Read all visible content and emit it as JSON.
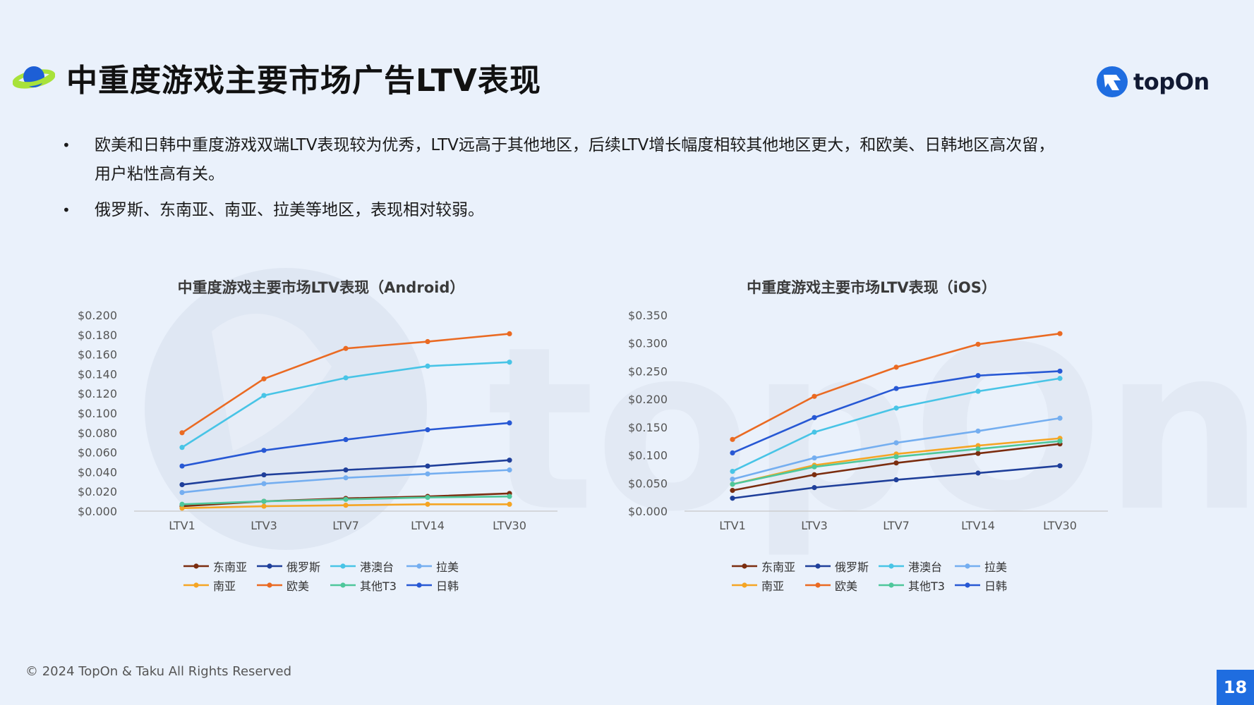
{
  "page": {
    "title": "中重度游戏主要市场广告LTV表现",
    "logo_text": "topOn",
    "bullets": [
      "欧美和日韩中重度游戏双端LTV表现较为优秀，LTV远高于其他地区，后续LTV增长幅度相较其他地区更大，和欧美、日韩地区高次留，用户粘性高有关。",
      "俄罗斯、东南亚、南亚、拉美等地区，表现相对较弱。"
    ],
    "bullet_marker": "•",
    "footer": "© 2024 TopOn & Taku All Rights Reserved",
    "page_number": "18"
  },
  "chart_data": [
    {
      "type": "line",
      "title": "中重度游戏主要市场LTV表现（Android）",
      "categories": [
        "LTV1",
        "LTV3",
        "LTV7",
        "LTV14",
        "LTV30"
      ],
      "ylim": [
        0,
        0.2
      ],
      "yticks": [
        "$0.000",
        "$0.020",
        "$0.040",
        "$0.060",
        "$0.080",
        "$0.100",
        "$0.120",
        "$0.140",
        "$0.160",
        "$0.180",
        "$0.200"
      ],
      "grid": false,
      "legend": "bottom",
      "series": [
        {
          "name": "东南亚",
          "color": "#7b2d0f",
          "values": [
            0.005,
            0.01,
            0.013,
            0.015,
            0.018
          ]
        },
        {
          "name": "俄罗斯",
          "color": "#1f3f9a",
          "values": [
            0.027,
            0.037,
            0.042,
            0.046,
            0.052
          ]
        },
        {
          "name": "港澳台",
          "color": "#48c4e6",
          "values": [
            0.065,
            0.118,
            0.136,
            0.148,
            0.152
          ]
        },
        {
          "name": "拉美",
          "color": "#74aef0",
          "values": [
            0.019,
            0.028,
            0.034,
            0.038,
            0.042
          ]
        },
        {
          "name": "南亚",
          "color": "#f5a524",
          "values": [
            0.003,
            0.005,
            0.006,
            0.007,
            0.007
          ]
        },
        {
          "name": "欧美",
          "color": "#ea6a22",
          "values": [
            0.08,
            0.135,
            0.166,
            0.173,
            0.181
          ]
        },
        {
          "name": "其他T3",
          "color": "#4fc79b",
          "values": [
            0.007,
            0.01,
            0.012,
            0.014,
            0.015
          ]
        },
        {
          "name": "日韩",
          "color": "#2758d4",
          "values": [
            0.046,
            0.062,
            0.073,
            0.083,
            0.09
          ]
        }
      ]
    },
    {
      "type": "line",
      "title": "中重度游戏主要市场LTV表现（iOS）",
      "categories": [
        "LTV1",
        "LTV3",
        "LTV7",
        "LTV14",
        "LTV30"
      ],
      "ylim": [
        0,
        0.35
      ],
      "yticks": [
        "$0.000",
        "$0.050",
        "$0.100",
        "$0.150",
        "$0.200",
        "$0.250",
        "$0.300",
        "$0.350"
      ],
      "grid": false,
      "legend": "bottom",
      "series": [
        {
          "name": "东南亚",
          "color": "#7b2d0f",
          "values": [
            0.037,
            0.065,
            0.086,
            0.103,
            0.12
          ]
        },
        {
          "name": "俄罗斯",
          "color": "#1f3f9a",
          "values": [
            0.023,
            0.042,
            0.056,
            0.068,
            0.081
          ]
        },
        {
          "name": "港澳台",
          "color": "#48c4e6",
          "values": [
            0.071,
            0.141,
            0.184,
            0.214,
            0.237
          ]
        },
        {
          "name": "拉美",
          "color": "#74aef0",
          "values": [
            0.057,
            0.095,
            0.122,
            0.143,
            0.166
          ]
        },
        {
          "name": "南亚",
          "color": "#f5a524",
          "values": [
            0.048,
            0.082,
            0.102,
            0.117,
            0.13
          ]
        },
        {
          "name": "欧美",
          "color": "#ea6a22",
          "values": [
            0.128,
            0.205,
            0.257,
            0.298,
            0.317
          ]
        },
        {
          "name": "其他T3",
          "color": "#4fc79b",
          "values": [
            0.048,
            0.079,
            0.097,
            0.111,
            0.125
          ]
        },
        {
          "name": "日韩",
          "color": "#2758d4",
          "values": [
            0.104,
            0.167,
            0.219,
            0.242,
            0.25
          ]
        }
      ]
    }
  ]
}
